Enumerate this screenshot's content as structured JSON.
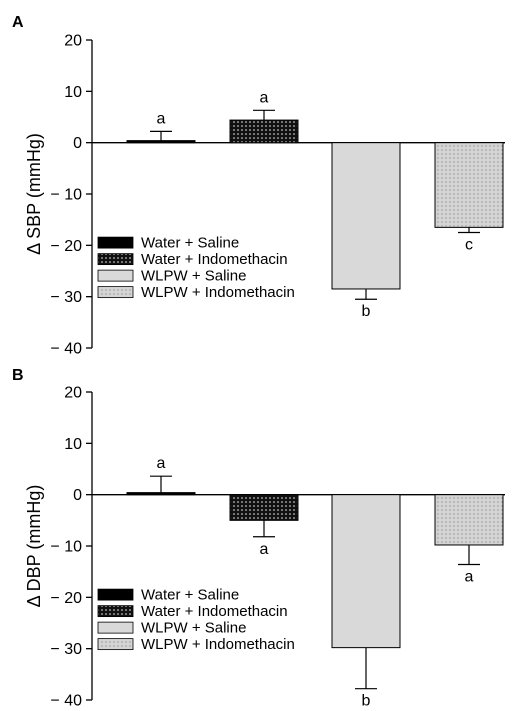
{
  "chart_data": [
    {
      "panel_label": "A",
      "type": "bar",
      "categories": [
        "Water + Saline",
        "Water + Indomethacin",
        "WLPW + Saline",
        "WLPW + Indomethacin"
      ],
      "values": [
        0.4,
        4.4,
        -28.5,
        -16.5
      ],
      "errors": [
        1.8,
        1.9,
        2.0,
        1.0
      ],
      "significance": [
        "a",
        "a",
        "b",
        "c"
      ],
      "ylabel": "Δ SBP (mmHg)",
      "ylim": [
        -40,
        20
      ],
      "yticks": [
        20,
        10,
        0,
        -10,
        -20,
        -30,
        -40
      ],
      "ytick_labels": [
        "20",
        "10",
        "0",
        "− 10",
        "− 20",
        "− 30",
        "− 40"
      ],
      "legend": [
        "Water + Saline",
        "Water + Indomethacin",
        "WLPW + Saline",
        "WLPW + Indomethacin"
      ],
      "legend_position": "bottom-left"
    },
    {
      "panel_label": "B",
      "type": "bar",
      "categories": [
        "Water + Saline",
        "Water + Indomethacin",
        "WLPW + Saline",
        "WLPW + Indomethacin"
      ],
      "values": [
        0.4,
        -5.0,
        -29.8,
        -9.8
      ],
      "errors": [
        3.2,
        3.2,
        8.0,
        3.8
      ],
      "significance": [
        "a",
        "a",
        "b",
        "a"
      ],
      "ylabel": "Δ DBP (mmHg)",
      "ylim": [
        -40,
        20
      ],
      "yticks": [
        20,
        10,
        0,
        -10,
        -20,
        -30,
        -40
      ],
      "ytick_labels": [
        "20",
        "10",
        "0",
        "− 10",
        "− 20",
        "− 30",
        "− 40"
      ],
      "legend": [
        "Water + Saline",
        "Water + Indomethacin",
        "WLPW + Saline",
        "WLPW + Indomethacin"
      ],
      "legend_position": "bottom-left"
    }
  ],
  "styles": {
    "series_fills": [
      "#000000",
      "#111111",
      "#d9d9d9",
      "#d4d4d4"
    ],
    "series_patterns": [
      "solid",
      "white-dots",
      "solid",
      "black-dots"
    ],
    "axis_color": "#000000"
  }
}
